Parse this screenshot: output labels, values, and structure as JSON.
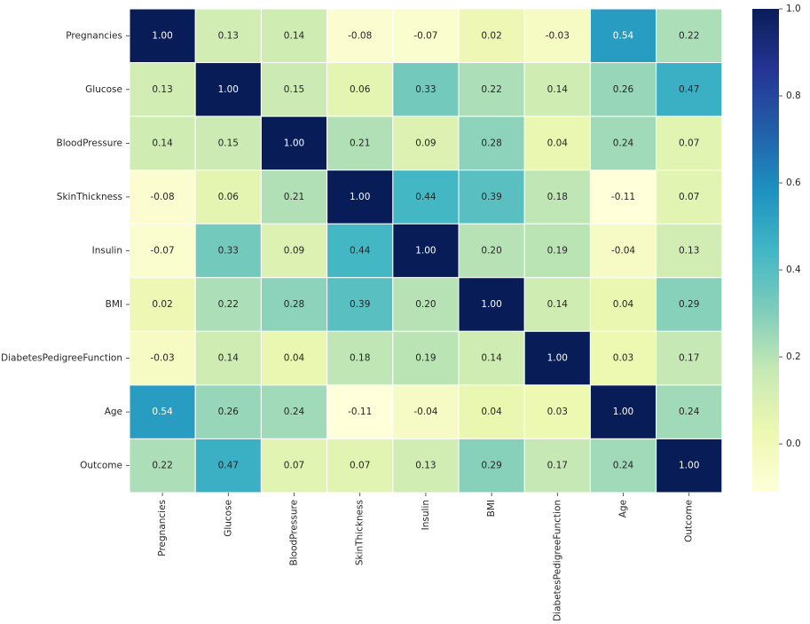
{
  "chart_data": {
    "type": "heatmap",
    "x_labels": [
      "Pregnancies",
      "Glucose",
      "BloodPressure",
      "SkinThickness",
      "Insulin",
      "BMI",
      "DiabetesPedigreeFunction",
      "Age",
      "Outcome"
    ],
    "y_labels": [
      "Pregnancies",
      "Glucose",
      "BloodPressure",
      "SkinThickness",
      "Insulin",
      "BMI",
      "DiabetesPedigreeFunction",
      "Age",
      "Outcome"
    ],
    "values": [
      [
        1.0,
        0.13,
        0.14,
        -0.08,
        -0.07,
        0.02,
        -0.03,
        0.54,
        0.22
      ],
      [
        0.13,
        1.0,
        0.15,
        0.06,
        0.33,
        0.22,
        0.14,
        0.26,
        0.47
      ],
      [
        0.14,
        0.15,
        1.0,
        0.21,
        0.09,
        0.28,
        0.04,
        0.24,
        0.07
      ],
      [
        -0.08,
        0.06,
        0.21,
        1.0,
        0.44,
        0.39,
        0.18,
        -0.11,
        0.07
      ],
      [
        -0.07,
        0.33,
        0.09,
        0.44,
        1.0,
        0.2,
        0.19,
        -0.04,
        0.13
      ],
      [
        0.02,
        0.22,
        0.28,
        0.39,
        0.2,
        1.0,
        0.14,
        0.04,
        0.29
      ],
      [
        -0.03,
        0.14,
        0.04,
        0.18,
        0.19,
        0.14,
        1.0,
        0.03,
        0.17
      ],
      [
        0.54,
        0.26,
        0.24,
        -0.11,
        -0.04,
        0.04,
        0.03,
        1.0,
        0.24
      ],
      [
        0.22,
        0.47,
        0.07,
        0.07,
        0.13,
        0.29,
        0.17,
        0.24,
        1.0
      ]
    ],
    "value_format": "0.00",
    "colormap": "YlGnBu",
    "colormap_stops": [
      "#ffffd9",
      "#edf8b1",
      "#c7e9b4",
      "#7fcdbb",
      "#41b6c4",
      "#1d91c0",
      "#225ea8",
      "#253494",
      "#081d58"
    ],
    "vmin": -0.11,
    "vmax": 1.0,
    "colorbar_ticks": [
      0.0,
      0.2,
      0.4,
      0.6,
      0.8,
      1.0
    ],
    "colorbar_tick_labels": [
      "0.0",
      "0.2",
      "0.4",
      "0.6",
      "0.8",
      "1.0"
    ],
    "annotation_text_dark": "#262626",
    "annotation_text_light": "#ffffff",
    "cell_border_color": "#ffffff",
    "title": "",
    "xlabel": "",
    "ylabel": "",
    "legend": "colorbar-right",
    "grid": false
  }
}
